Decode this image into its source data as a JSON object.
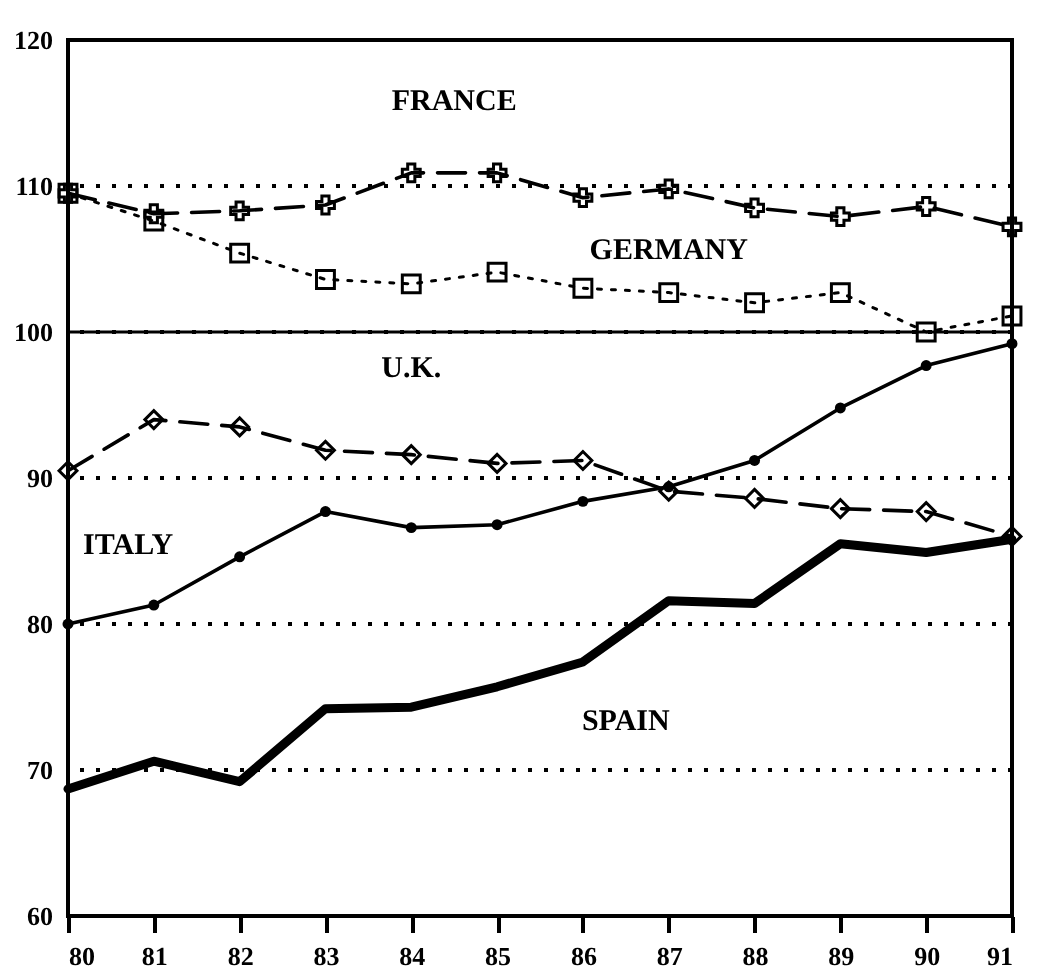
{
  "chart_data": {
    "type": "line",
    "x": [
      80,
      81,
      82,
      83,
      84,
      85,
      86,
      87,
      88,
      89,
      90,
      91
    ],
    "xlim": [
      80,
      91
    ],
    "xticks": [
      80,
      81,
      82,
      83,
      84,
      85,
      86,
      87,
      88,
      89,
      90,
      91
    ],
    "ylim": [
      60,
      120
    ],
    "yticks": [
      60,
      70,
      80,
      90,
      100,
      110,
      120
    ],
    "grid": "y",
    "ref_lines": [
      {
        "axis": "y",
        "value": 100,
        "line_style": "solid",
        "color": "#000000"
      }
    ],
    "series": [
      {
        "name": "FRANCE",
        "color": "#000000",
        "marker": "cross",
        "line_style": "dashed",
        "values": [
          109.5,
          108.1,
          108.3,
          108.7,
          110.9,
          110.9,
          109.2,
          109.8,
          108.5,
          107.9,
          108.6,
          107.2
        ]
      },
      {
        "name": "GERMANY",
        "color": "#000000",
        "marker": "square",
        "line_style": "dotted",
        "values": [
          109.5,
          107.6,
          105.4,
          103.6,
          103.3,
          104.1,
          103.0,
          102.7,
          102.0,
          102.7,
          100.0,
          101.1
        ]
      },
      {
        "name": "U.K.",
        "color": "#000000",
        "marker": "diamond",
        "line_style": "dashed",
        "values": [
          90.5,
          94.0,
          93.5,
          91.9,
          91.6,
          91.0,
          91.2,
          89.1,
          88.6,
          87.9,
          87.7,
          86.0
        ]
      },
      {
        "name": "ITALY",
        "color": "#000000",
        "marker": "circle",
        "line_style": "solid",
        "values": [
          80,
          81.3,
          84.6,
          87.7,
          86.6,
          86.8,
          88.4,
          89.4,
          91.2,
          94.8,
          97.7,
          99.2
        ]
      },
      {
        "name": "SPAIN",
        "color": "#000000",
        "marker": "none",
        "line_style": "solid",
        "values": [
          68.7,
          70.6,
          69.2,
          74.2,
          74.3,
          75.7,
          77.4,
          81.6,
          81.4,
          85.5,
          84.9,
          85.8
        ]
      }
    ]
  }
}
